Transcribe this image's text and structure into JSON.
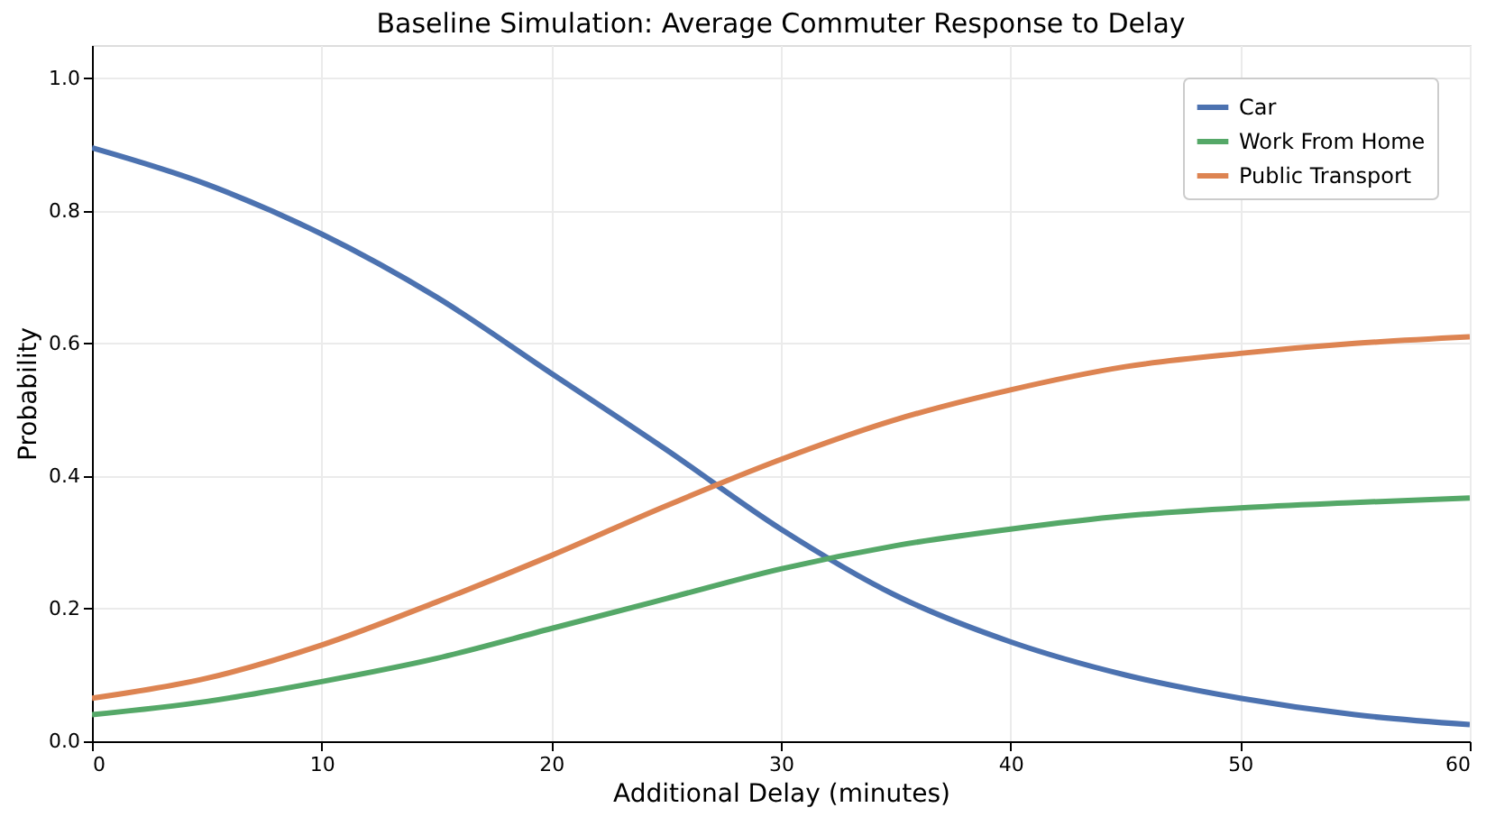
{
  "chart_data": {
    "type": "line",
    "title": "Baseline Simulation: Average Commuter Response to Delay",
    "xlabel": "Additional Delay (minutes)",
    "ylabel": "Probability",
    "x": [
      0,
      5,
      10,
      15,
      20,
      25,
      30,
      35,
      40,
      45,
      50,
      55,
      60
    ],
    "series": [
      {
        "name": "Car",
        "color": "#4c72b0",
        "values": [
          0.895,
          0.84,
          0.765,
          0.67,
          0.555,
          0.44,
          0.32,
          0.22,
          0.15,
          0.1,
          0.065,
          0.04,
          0.025
        ]
      },
      {
        "name": "Work From Home",
        "color": "#55a868",
        "values": [
          0.04,
          0.06,
          0.09,
          0.125,
          0.17,
          0.215,
          0.26,
          0.295,
          0.32,
          0.34,
          0.352,
          0.36,
          0.367
        ]
      },
      {
        "name": "Public Transport",
        "color": "#dd8452",
        "values": [
          0.065,
          0.095,
          0.145,
          0.21,
          0.28,
          0.355,
          0.425,
          0.485,
          0.53,
          0.565,
          0.585,
          0.6,
          0.61
        ]
      }
    ],
    "xlim": [
      0,
      60
    ],
    "xticks": [
      0,
      10,
      20,
      30,
      40,
      50,
      60
    ],
    "ylim": [
      0,
      1.05
    ],
    "yticks": [
      {
        "value": 0,
        "label": "0.0"
      },
      {
        "value": 0.2,
        "label": "0.2"
      },
      {
        "value": 0.4,
        "label": "0.4"
      },
      {
        "value": 0.6,
        "label": "0.6"
      },
      {
        "value": 0.8,
        "label": "0.8"
      },
      {
        "value": 1.0,
        "label": "1.0"
      }
    ],
    "grid": true,
    "legend": "top right",
    "marker": "none",
    "line_style": "solid"
  }
}
